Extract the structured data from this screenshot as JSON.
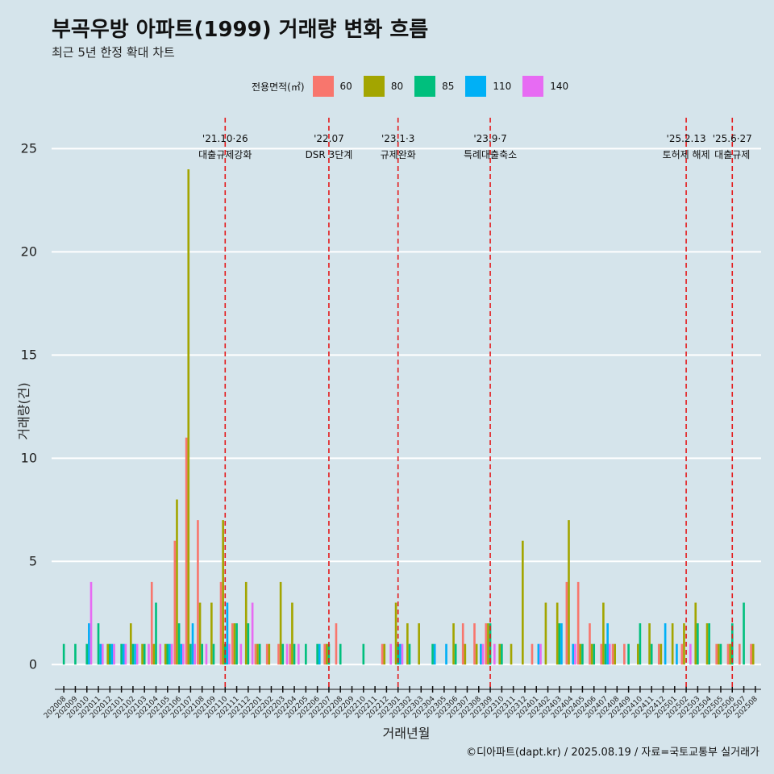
{
  "header": {
    "title": "부곡우방 아파트(1999) 거래량 변화 흐름",
    "subtitle": "최근 5년 한정 확대 차트"
  },
  "legend": {
    "title": "전용면적(㎡)",
    "items": [
      {
        "label": "60",
        "color": "#f8766d"
      },
      {
        "label": "80",
        "color": "#a3a500"
      },
      {
        "label": "85",
        "color": "#00bf7d"
      },
      {
        "label": "110",
        "color": "#00b0f6"
      },
      {
        "label": "140",
        "color": "#e76bf3"
      }
    ]
  },
  "caption": "©디아파트(dapt.kr) / 2025.08.19 / 자료=국토교통부 실거래가",
  "chart_data": {
    "type": "bar",
    "xlabel": "거래년월",
    "ylabel": "거래량(건)",
    "ylim": [
      -1.2,
      26.5
    ],
    "yticks": [
      0,
      5,
      10,
      15,
      20,
      25
    ],
    "grid": true,
    "legend_position": "top",
    "categories": [
      "202008",
      "202009",
      "202010",
      "202011",
      "202012",
      "202101",
      "202102",
      "202103",
      "202104",
      "202105",
      "202106",
      "202107",
      "202108",
      "202109",
      "202110",
      "202111",
      "202112",
      "202201",
      "202202",
      "202203",
      "202204",
      "202205",
      "202206",
      "202207",
      "202208",
      "202209",
      "202210",
      "202211",
      "202212",
      "202301",
      "202302",
      "202303",
      "202304",
      "202305",
      "202306",
      "202307",
      "202308",
      "202309",
      "202310",
      "202311",
      "202312",
      "202401",
      "202402",
      "202403",
      "202404",
      "202405",
      "202406",
      "202407",
      "202408",
      "202409",
      "202410",
      "202411",
      "202412",
      "202501",
      "202502",
      "202503",
      "202504",
      "202505",
      "202506",
      "202507",
      "202508"
    ],
    "series": [
      {
        "name": "60",
        "color": "#f8766d",
        "values": [
          0,
          0,
          0,
          0,
          0,
          0,
          0,
          0,
          4,
          0,
          6,
          11,
          7,
          0,
          4,
          2,
          0,
          1,
          1,
          1,
          1,
          0,
          0,
          1,
          2,
          0,
          0,
          0,
          1,
          0,
          0,
          0,
          0,
          0,
          0,
          2,
          2,
          2,
          0,
          0,
          0,
          1,
          0,
          0,
          4,
          4,
          2,
          1,
          1,
          1,
          0,
          0,
          1,
          0,
          1,
          0,
          0,
          1,
          1,
          1,
          1
        ]
      },
      {
        "name": "80",
        "color": "#a3a500",
        "values": [
          0,
          0,
          0,
          0,
          1,
          0,
          2,
          1,
          1,
          1,
          8,
          24,
          3,
          3,
          7,
          2,
          4,
          1,
          1,
          4,
          3,
          0,
          0,
          1,
          0,
          0,
          0,
          0,
          1,
          3,
          2,
          2,
          0,
          0,
          2,
          1,
          1,
          2,
          1,
          1,
          6,
          0,
          3,
          3,
          7,
          1,
          1,
          3,
          1,
          0,
          1,
          2,
          1,
          2,
          2,
          3,
          2,
          1,
          1,
          0,
          1
        ]
      },
      {
        "name": "85",
        "color": "#00bf7d",
        "values": [
          1,
          1,
          1,
          2,
          1,
          1,
          1,
          1,
          3,
          1,
          2,
          1,
          1,
          1,
          1,
          2,
          2,
          1,
          0,
          1,
          1,
          1,
          1,
          1,
          1,
          0,
          1,
          0,
          0,
          1,
          1,
          0,
          1,
          0,
          1,
          0,
          0,
          2,
          1,
          0,
          0,
          0,
          0,
          2,
          0,
          1,
          1,
          1,
          0,
          1,
          2,
          1,
          0,
          0,
          0,
          2,
          2,
          1,
          2,
          3,
          0
        ]
      },
      {
        "name": "110",
        "color": "#00b0f6",
        "values": [
          0,
          0,
          2,
          1,
          1,
          1,
          1,
          0,
          0,
          1,
          1,
          2,
          0,
          0,
          3,
          0,
          0,
          0,
          0,
          0,
          0,
          0,
          1,
          0,
          0,
          0,
          0,
          0,
          0,
          1,
          0,
          0,
          1,
          1,
          0,
          0,
          1,
          0,
          0,
          0,
          0,
          1,
          0,
          2,
          1,
          0,
          0,
          2,
          0,
          0,
          0,
          0,
          2,
          1,
          0,
          0,
          0,
          0,
          0,
          0,
          0
        ]
      },
      {
        "name": "140",
        "color": "#e76bf3",
        "values": [
          0,
          0,
          4,
          1,
          1,
          1,
          1,
          1,
          1,
          1,
          1,
          1,
          1,
          0,
          1,
          1,
          3,
          0,
          0,
          1,
          1,
          0,
          0,
          0,
          0,
          0,
          0,
          0,
          1,
          1,
          0,
          0,
          0,
          0,
          0,
          0,
          1,
          1,
          0,
          0,
          0,
          1,
          0,
          0,
          1,
          0,
          0,
          1,
          0,
          0,
          0,
          0,
          0,
          0,
          1,
          0,
          0,
          0,
          0,
          0,
          0
        ]
      }
    ],
    "annotations": [
      {
        "at": "202110",
        "date": "'21.10·26",
        "text": "대출규제강화"
      },
      {
        "at": "202207",
        "date": "'22.07",
        "text": "DSR 3단계"
      },
      {
        "at": "202301",
        "date": "'23.1·3",
        "text": "규제완화"
      },
      {
        "at": "202309",
        "date": "'23.9·7",
        "text": "특례대출축소"
      },
      {
        "at": "202502",
        "date": "'25.2.13",
        "text": "토허제 해제"
      },
      {
        "at": "202506",
        "date": "'25.6·27",
        "text": "대출규제"
      }
    ]
  }
}
